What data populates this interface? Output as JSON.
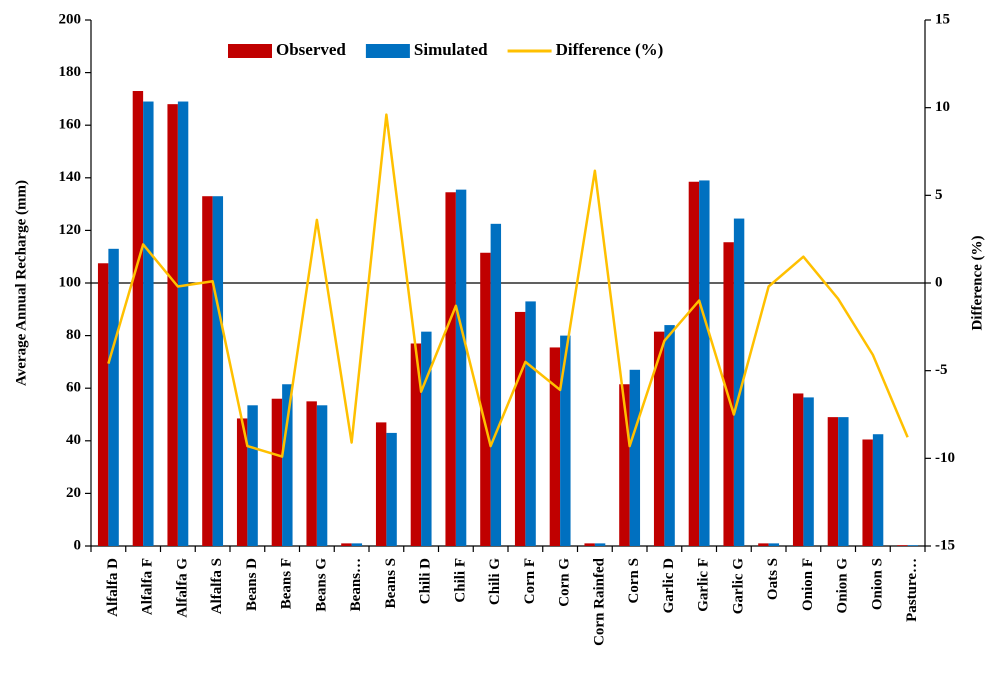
{
  "chart_data": {
    "type": "bar_line",
    "y_label": "Average Annual Recharge (mm)",
    "y2_label": "Difference (%)",
    "categories": [
      "Alfalfa D",
      "Alfalfa F",
      "Alfalfa G",
      "Alfalfa S",
      "Beans D",
      "Beans F",
      "Beans G",
      "Beans…",
      "Beans S",
      "Chili D",
      "Chili F",
      "Chili G",
      "Corn F",
      "Corn G",
      "Corn Rainfed",
      "Corn S",
      "Garlic D",
      "Garlic F",
      "Garlic G",
      "Oats S",
      "Onion F",
      "Onion G",
      "Onion S",
      "Pasture…"
    ],
    "series": [
      {
        "name": "Observed",
        "color": "#c00000",
        "type": "bar",
        "values": [
          107.5,
          173,
          168,
          133,
          48.5,
          56,
          55,
          1,
          47,
          77,
          134.5,
          111.5,
          89,
          75.5,
          1,
          61.5,
          81.5,
          138.5,
          115.5,
          1,
          58,
          49,
          40.5,
          0.3
        ]
      },
      {
        "name": "Simulated",
        "color": "#0070c0",
        "type": "bar",
        "values": [
          113,
          169,
          169,
          133,
          53.5,
          61.5,
          53.5,
          1,
          43,
          81.5,
          135.5,
          122.5,
          93,
          80,
          1,
          67,
          84,
          139,
          124.5,
          1,
          56.5,
          49,
          42.5,
          0.3
        ]
      },
      {
        "name": "Difference (%)",
        "color": "#ffc000",
        "type": "line",
        "axis": "y2",
        "values": [
          -4.6,
          2.2,
          -0.2,
          0.1,
          -9.3,
          -9.9,
          3.6,
          -9.1,
          9.6,
          -6.2,
          -1.3,
          -9.3,
          -4.5,
          -6.1,
          6.4,
          -9.3,
          -3.3,
          -1.0,
          -7.5,
          -0.2,
          1.5,
          -0.9,
          -4.1,
          -8.8
        ]
      }
    ],
    "ylim": [
      0,
      200
    ],
    "yticks": [
      0,
      20,
      40,
      60,
      80,
      100,
      120,
      140,
      160,
      180,
      200
    ],
    "y2lim": [
      -15,
      15
    ],
    "y2ticks": [
      -15,
      -10,
      -5,
      0,
      5,
      10,
      15
    ],
    "legend": "top"
  }
}
